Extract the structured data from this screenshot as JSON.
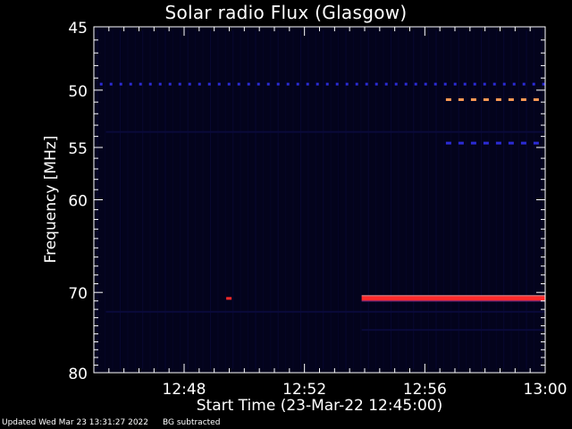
{
  "chart_data": {
    "type": "heatmap",
    "title": "Solar radio Flux (Glasgow)",
    "xlabel": "Start Time (23-Mar-22 12:45:00)",
    "ylabel": "Frequency [MHz]",
    "x_range_minutes": [
      0,
      15
    ],
    "x_ticks": [
      {
        "label": "12:48",
        "minute": 3
      },
      {
        "label": "12:52",
        "minute": 7
      },
      {
        "label": "12:56",
        "minute": 11
      },
      {
        "label": "13:00",
        "minute": 15
      }
    ],
    "y_scale": "log",
    "y_range": [
      45,
      80
    ],
    "y_ticks": [
      45,
      50,
      55,
      60,
      70,
      80
    ],
    "colors": {
      "background": "#000000",
      "plot_background": "#03031c",
      "faint_noise": "#0a0a3a",
      "blue_band": "#2b2bd6",
      "orange_band": "#ff9a55",
      "red_band": "#ff2a2a"
    },
    "features": [
      {
        "name": "dashed emission",
        "freq": 49.5,
        "start": 0.2,
        "end": 15,
        "color": "blue",
        "dashed": true
      },
      {
        "name": "orange band",
        "freq": 50.8,
        "start": 11.7,
        "end": 15,
        "color": "orange",
        "dashed": true
      },
      {
        "name": "blue band",
        "freq": 54.6,
        "start": 11.7,
        "end": 15,
        "color": "blue",
        "dashed": true
      },
      {
        "name": "short burst",
        "freq": 70.7,
        "start": 4.4,
        "end": 4.8,
        "color": "red",
        "dashed": true
      },
      {
        "name": "strong band",
        "freq": 70.7,
        "start": 8.9,
        "end": 15,
        "color": "red",
        "dashed": false
      },
      {
        "name": "faint band",
        "freq": 74.5,
        "start": 8.9,
        "end": 15,
        "color": "faint",
        "dashed": false
      },
      {
        "name": "faint band",
        "freq": 53.6,
        "start": 0.4,
        "end": 15,
        "color": "faint",
        "dashed": false
      },
      {
        "name": "faint band",
        "freq": 72.3,
        "start": 0.4,
        "end": 15,
        "color": "faint",
        "dashed": false
      }
    ]
  },
  "footer": {
    "updated": "Updated Wed Mar 23 13:31:27 2022",
    "note": "BG subtracted"
  }
}
